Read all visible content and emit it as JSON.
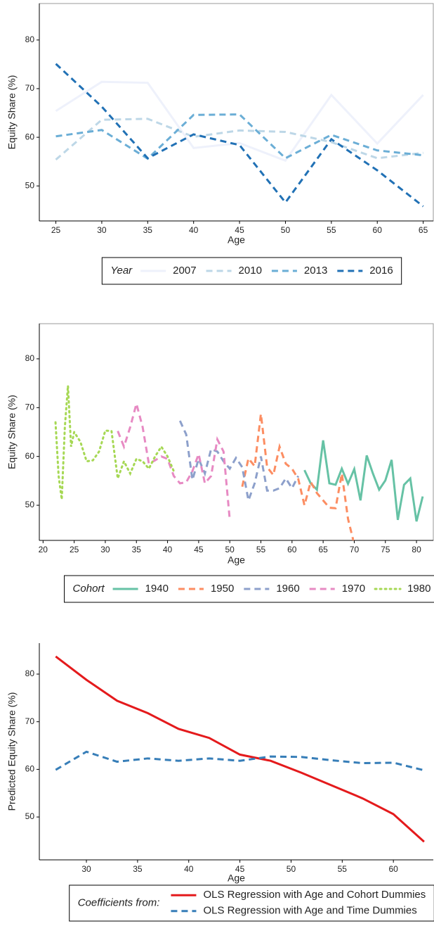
{
  "chart_data": [
    {
      "type": "line",
      "x_label": "Age",
      "y_label": "Equity Share (%)",
      "legend_title": "Year",
      "legend_layout": "horizontal",
      "frame": true,
      "x": [
        25,
        30,
        35,
        40,
        45,
        50,
        55,
        60,
        65
      ],
      "xlim": [
        23.2,
        66.1
      ],
      "xticks": [
        25,
        30,
        35,
        40,
        45,
        50,
        55,
        60,
        65
      ],
      "ylim": [
        42.8,
        87.5
      ],
      "yticks": [
        50,
        60,
        70,
        80
      ],
      "series": [
        {
          "name": "2007",
          "color": "#eef1fb",
          "dash": "solid",
          "values": [
            65.4,
            71.4,
            71.2,
            57.8,
            58.8,
            55.2,
            68.7,
            58.7,
            68.7
          ]
        },
        {
          "name": "2010",
          "color": "#bdd7e7",
          "dash": "dashed",
          "values": [
            55.4,
            63.6,
            63.8,
            60.1,
            61.4,
            61.1,
            59.0,
            55.7,
            56.8
          ]
        },
        {
          "name": "2013",
          "color": "#6baed6",
          "dash": "dashed",
          "values": [
            60.2,
            61.5,
            55.6,
            64.6,
            64.7,
            55.7,
            60.5,
            57.3,
            56.3
          ]
        },
        {
          "name": "2016",
          "color": "#2171b5",
          "dash": "dashed",
          "values": [
            75.1,
            66.3,
            55.7,
            60.6,
            58.4,
            46.6,
            59.6,
            53.2,
            45.8
          ]
        }
      ]
    },
    {
      "type": "line",
      "x_label": "Age",
      "y_label": "Equity Share (%)",
      "legend_title": "Cohort",
      "legend_layout": "horizontal",
      "frame": true,
      "xlim": [
        19.4,
        82.7
      ],
      "xticks": [
        20,
        25,
        30,
        35,
        40,
        45,
        50,
        55,
        60,
        65,
        70,
        75,
        80
      ],
      "ylim": [
        42.8,
        87.2
      ],
      "yticks": [
        50,
        60,
        70,
        80
      ],
      "series": [
        {
          "name": "1940",
          "color": "#66c2a5",
          "dash": "solid",
          "x": [
            62,
            63,
            64,
            65,
            66,
            67,
            68,
            69,
            70,
            71,
            72,
            73,
            74,
            75,
            76,
            77,
            78,
            79,
            80,
            81
          ],
          "values": [
            57.2,
            54.5,
            53.2,
            63.3,
            54.5,
            54.2,
            57.5,
            54.4,
            57.4,
            51.0,
            60.2,
            56.5,
            53.2,
            55.1,
            59.3,
            47.0,
            54.2,
            55.5,
            46.7,
            51.8
          ]
        },
        {
          "name": "1950",
          "color": "#fc8d62",
          "dash": "dashed",
          "x": [
            52,
            53,
            54,
            55,
            56,
            57,
            58,
            59,
            60,
            61,
            62,
            63,
            64,
            65,
            66,
            67,
            68,
            69,
            70
          ],
          "values": [
            53.8,
            59.6,
            58.0,
            68.7,
            57.8,
            56.2,
            62.0,
            58.5,
            57.5,
            55.4,
            50.0,
            54.8,
            52.5,
            51.0,
            49.5,
            49.4,
            56.5,
            47.2,
            42.0
          ]
        },
        {
          "name": "1960",
          "color": "#8da0cb",
          "dash": "dashed",
          "x": [
            42,
            43,
            44,
            45,
            46,
            47,
            48,
            49,
            50,
            51,
            52,
            53,
            54,
            55,
            56,
            57,
            58,
            59,
            60,
            61
          ],
          "values": [
            67.3,
            64.5,
            55.2,
            59.5,
            56.5,
            61.5,
            61.0,
            59.0,
            57.5,
            59.7,
            57.8,
            51.0,
            54.5,
            60.0,
            53.0,
            53.0,
            53.5,
            55.5,
            53.5,
            56.0
          ]
        },
        {
          "name": "1970",
          "color": "#e78ac3",
          "dash": "dashed",
          "x": [
            32,
            33,
            34,
            35,
            36,
            37,
            38,
            39,
            40,
            41,
            42,
            43,
            44,
            45,
            46,
            47,
            48,
            49,
            50
          ],
          "values": [
            65.2,
            62.0,
            66.0,
            70.8,
            66.0,
            58.5,
            59.2,
            60.0,
            59.5,
            56.0,
            54.5,
            54.7,
            57.0,
            60.5,
            54.5,
            56.0,
            63.5,
            61.0,
            47.0
          ]
        },
        {
          "name": "1980",
          "color": "#a6d854",
          "dash": "dotted",
          "x": [
            22,
            22.5,
            23,
            23.5,
            24,
            24.5,
            25,
            26,
            27,
            28,
            29,
            30,
            31,
            32,
            33,
            34,
            35,
            36,
            37,
            38,
            39,
            40,
            41
          ],
          "values": [
            67.0,
            56.0,
            51.2,
            66.0,
            74.5,
            62.0,
            65.0,
            63.0,
            59.0,
            59.2,
            61.0,
            65.3,
            65.2,
            55.5,
            59.0,
            56.5,
            59.5,
            59.0,
            57.5,
            60.0,
            62.0,
            60.0,
            57.0
          ]
        }
      ]
    },
    {
      "type": "line",
      "x_label": "Age",
      "y_label": "Predicted Equity Share (%)",
      "legend_title": "Coefficients from:",
      "legend_layout": "vertical",
      "frame": false,
      "x": [
        27,
        30,
        33,
        36,
        39,
        42,
        45,
        48,
        51,
        54,
        57,
        60,
        63
      ],
      "xlim": [
        25.4,
        63.9
      ],
      "xticks": [
        30,
        35,
        40,
        45,
        50,
        55,
        60
      ],
      "ylim": [
        41.0,
        86.5
      ],
      "yticks": [
        50,
        60,
        70,
        80
      ],
      "series": [
        {
          "name": "OLS Regression with Age and Cohort Dummies",
          "color": "#e41a1c",
          "dash": "solid",
          "values": [
            83.7,
            78.8,
            74.4,
            71.8,
            68.5,
            66.6,
            63.1,
            61.8,
            59.3,
            56.6,
            53.9,
            50.6,
            44.8
          ]
        },
        {
          "name": "OLS Regression with Age and Time Dummies",
          "color": "#377eb8",
          "dash": "dashed",
          "values": [
            59.9,
            63.7,
            61.6,
            62.3,
            61.8,
            62.3,
            61.8,
            62.7,
            62.6,
            61.9,
            61.3,
            61.4,
            59.8
          ]
        }
      ]
    }
  ]
}
